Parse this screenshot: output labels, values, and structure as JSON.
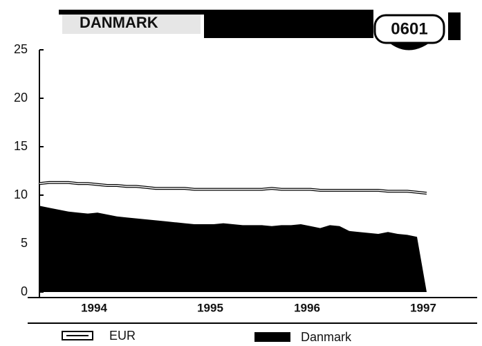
{
  "chart_data": {
    "type": "area",
    "title": "DANMARK",
    "badge": "0601",
    "categories": [
      null,
      null,
      null,
      null,
      null,
      null,
      "1994",
      null,
      null,
      null,
      null,
      null,
      null,
      null,
      null,
      null,
      null,
      null,
      "1995",
      null,
      null,
      null,
      null,
      null,
      null,
      null,
      null,
      null,
      "1996",
      null,
      null,
      null,
      null,
      null,
      null,
      null,
      null,
      null,
      null,
      null,
      "1997"
    ],
    "series": [
      {
        "name": "EUR",
        "color": "#ffffff",
        "values": [
          11.2,
          11.3,
          11.3,
          11.3,
          11.2,
          11.2,
          11.1,
          11.0,
          11.0,
          10.9,
          10.9,
          10.8,
          10.7,
          10.7,
          10.7,
          10.7,
          10.6,
          10.6,
          10.6,
          10.6,
          10.6,
          10.6,
          10.6,
          10.6,
          10.7,
          10.6,
          10.6,
          10.6,
          10.6,
          10.5,
          10.5,
          10.5,
          10.5,
          10.5,
          10.5,
          10.5,
          10.4,
          10.4,
          10.4,
          10.3,
          10.2
        ]
      },
      {
        "name": "Danmark",
        "color": "#000000",
        "values": [
          8.9,
          8.7,
          8.5,
          8.3,
          8.2,
          8.1,
          8.2,
          8.0,
          7.8,
          7.7,
          7.6,
          7.5,
          7.4,
          7.3,
          7.2,
          7.1,
          7.0,
          7.0,
          7.0,
          7.1,
          7.0,
          6.9,
          6.9,
          6.9,
          6.8,
          6.9,
          6.9,
          7.0,
          6.8,
          6.6,
          6.9,
          6.8,
          6.3,
          6.2,
          6.1,
          6.0,
          6.2,
          6.0,
          5.9,
          5.7,
          0
        ]
      }
    ],
    "ylim": [
      0,
      25
    ],
    "yticks": [
      0,
      5,
      10,
      15,
      20,
      25
    ]
  }
}
